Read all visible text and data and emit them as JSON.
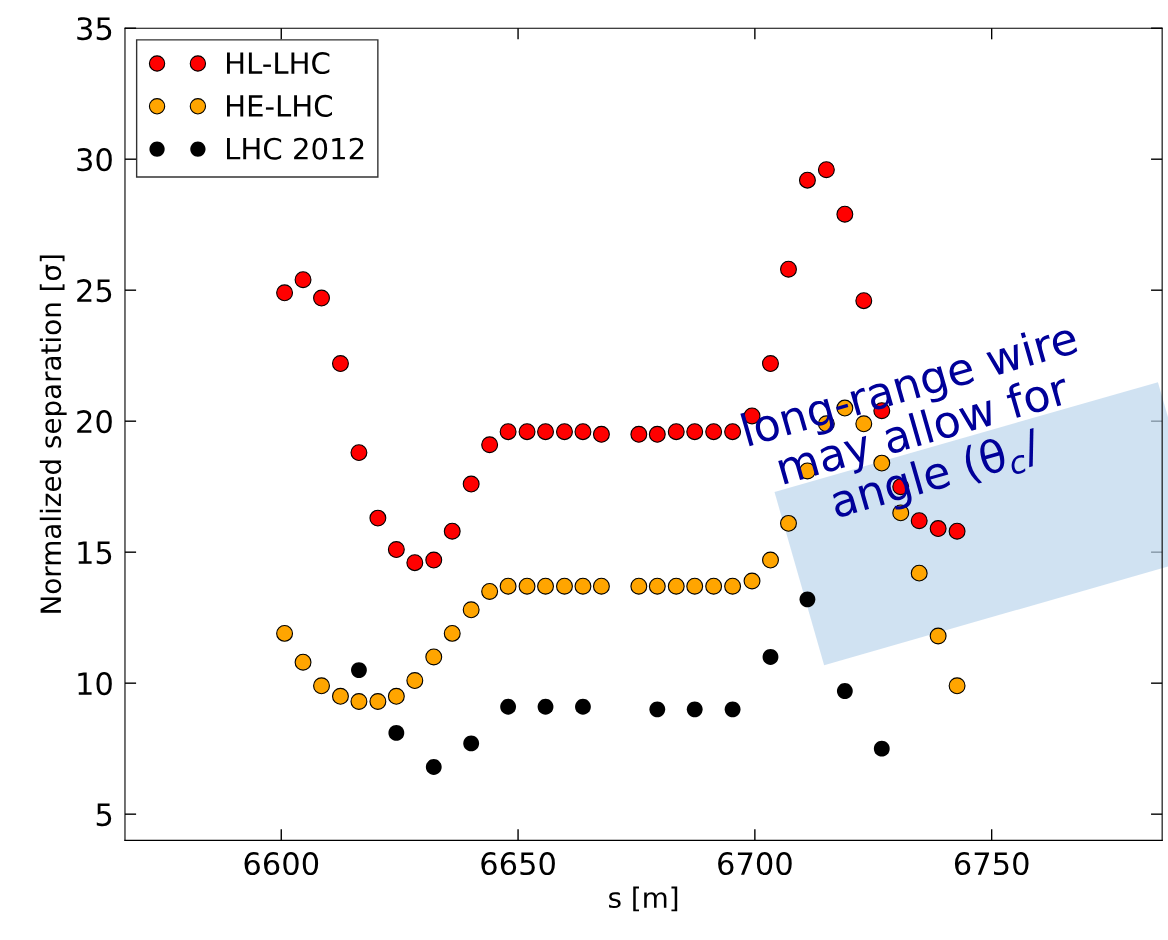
{
  "chart_data": {
    "type": "scatter",
    "xlabel": "s [m]",
    "ylabel": "Normalized separation [σ]",
    "xlim": [
      6567,
      6786
    ],
    "xticks": [
      6600,
      6650,
      6700,
      6750
    ],
    "ylim": [
      4,
      35
    ],
    "yticks": [
      5,
      10,
      15,
      20,
      25,
      30,
      35
    ],
    "grid": false,
    "legend": "top left",
    "marker": "circle",
    "series": [
      {
        "name": "HL-LHC",
        "color": "#ff0000",
        "x": [
          6600.7,
          6604.6,
          6608.5,
          6612.5,
          6616.4,
          6620.4,
          6624.3,
          6628.2,
          6632.2,
          6636.1,
          6640.1,
          6644.0,
          6647.9,
          6651.9,
          6655.8,
          6659.8,
          6663.7,
          6667.6,
          6675.5,
          6679.4,
          6683.4,
          6687.3,
          6691.3,
          6695.3,
          6699.4,
          6703.3,
          6707.1,
          6711.1,
          6715.1,
          6719.0,
          6723.0,
          6726.8,
          6730.8,
          6734.7,
          6738.7,
          6742.7
        ],
        "values": [
          24.9,
          25.4,
          24.7,
          22.2,
          18.8,
          16.3,
          15.1,
          14.6,
          14.7,
          15.8,
          17.6,
          19.1,
          19.6,
          19.6,
          19.6,
          19.6,
          19.6,
          19.5,
          19.5,
          19.5,
          19.6,
          19.6,
          19.6,
          19.6,
          20.2,
          22.2,
          25.8,
          29.2,
          29.6,
          27.9,
          24.6,
          20.4,
          17.5,
          16.2,
          15.9,
          15.8
        ]
      },
      {
        "name": "HE-LHC",
        "color": "#ffa500",
        "x": [
          6600.7,
          6604.6,
          6608.5,
          6612.5,
          6616.4,
          6620.4,
          6624.3,
          6628.2,
          6632.2,
          6636.1,
          6640.1,
          6644.0,
          6647.9,
          6651.9,
          6655.8,
          6659.8,
          6663.7,
          6667.6,
          6675.5,
          6679.4,
          6683.4,
          6687.3,
          6691.3,
          6695.3,
          6699.4,
          6703.3,
          6707.1,
          6711.1,
          6715.1,
          6719.0,
          6723.0,
          6726.8,
          6730.8,
          6734.7,
          6738.7,
          6742.7
        ],
        "values": [
          11.9,
          10.8,
          9.9,
          9.5,
          9.3,
          9.3,
          9.5,
          10.1,
          11.0,
          11.9,
          12.8,
          13.5,
          13.7,
          13.7,
          13.7,
          13.7,
          13.7,
          13.7,
          13.7,
          13.7,
          13.7,
          13.7,
          13.7,
          13.7,
          13.9,
          14.7,
          16.1,
          18.1,
          19.9,
          20.5,
          19.9,
          18.4,
          16.5,
          14.2,
          11.8,
          9.9
        ]
      },
      {
        "name": "LHC 2012",
        "color": "#000000",
        "x": [
          6616.4,
          6624.3,
          6632.2,
          6640.1,
          6647.9,
          6655.8,
          6663.7,
          6679.4,
          6687.3,
          6695.3,
          6703.3,
          6711.1,
          6719.0,
          6726.8
        ],
        "values": [
          10.5,
          8.1,
          6.8,
          7.7,
          9.1,
          9.1,
          9.1,
          9.0,
          9.0,
          9.0,
          11.0,
          13.2,
          9.7,
          7.5
        ]
      }
    ],
    "annotations": [
      "long-range wire\nmay allow for\nangle (θ$_{c}$/"
    ]
  }
}
